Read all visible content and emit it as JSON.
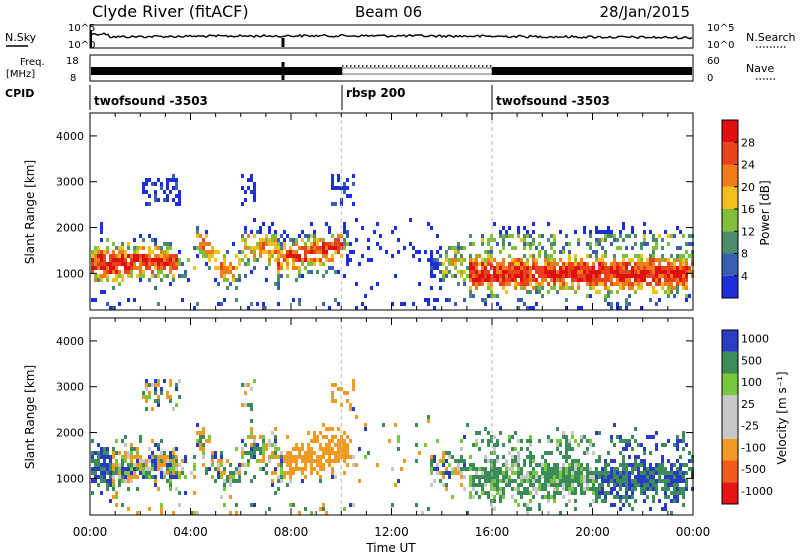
{
  "header": {
    "station": "Clyde River (fitACF)",
    "beam": "Beam 06",
    "date": "28/Jan/2015"
  },
  "noise_panel": {
    "left_label": "N.Sky",
    "right_label": "N.Search",
    "left_ticks": [
      "10^5",
      "10^0"
    ],
    "right_ticks": [
      "10^5",
      "10^0"
    ]
  },
  "freq_panel": {
    "left_label_line1": "Freq.",
    "left_label_line2": "[MHz]",
    "left_ticks": [
      "18",
      "8"
    ],
    "right_ticks": [
      "60",
      "0"
    ],
    "right_label": "Nave"
  },
  "cpid_panel": {
    "label": "CPID",
    "segments": [
      {
        "name": "twofsound -3503",
        "start_hour": 0,
        "end_hour": 10
      },
      {
        "name": "rbsp 200",
        "start_hour": 10,
        "end_hour": 16
      },
      {
        "name": "twofsound -3503",
        "start_hour": 16,
        "end_hour": 24
      }
    ]
  },
  "colors": {
    "power": [
      "#1c2fd8",
      "#3a5fb0",
      "#4a8c6c",
      "#7fbf3a",
      "#f2c01e",
      "#f07c1a",
      "#e8431c",
      "#e01010"
    ],
    "velocity": [
      "#e81414",
      "#f05a1a",
      "#f09a28",
      "#c8c8c8",
      "#c8c8c8",
      "#78c83c",
      "#3c8c5a",
      "#2a3cc0"
    ]
  },
  "chart_data": [
    {
      "type": "heatmap",
      "name": "power",
      "xlabel": "",
      "ylabel": "Slant Range [km]",
      "x_ticks": [
        "00:00",
        "04:00",
        "08:00",
        "12:00",
        "16:00",
        "20:00",
        "00:00"
      ],
      "xlim_hours": [
        0,
        24
      ],
      "ylim": [
        200,
        4500
      ],
      "y_ticks": [
        1000,
        2000,
        3000,
        4000
      ],
      "colorbar_label": "Power [dB]",
      "colorbar_ticks": [
        4,
        8,
        12,
        16,
        20,
        24,
        28
      ],
      "colorbar_range": [
        0,
        32
      ],
      "dashed_lines_hours": [
        10,
        16
      ]
    },
    {
      "type": "heatmap",
      "name": "velocity",
      "xlabel": "Time UT",
      "ylabel": "Slant Range [km]",
      "x_ticks": [
        "00:00",
        "04:00",
        "08:00",
        "12:00",
        "16:00",
        "20:00",
        "00:00"
      ],
      "xlim_hours": [
        0,
        24
      ],
      "ylim": [
        200,
        4500
      ],
      "y_ticks": [
        1000,
        2000,
        3000,
        4000
      ],
      "colorbar_label": "Velocity [m s⁻¹]",
      "colorbar_ticks": [
        "1000",
        "500",
        "100",
        "25",
        "-25",
        "-100",
        "-500",
        "-1000"
      ],
      "dashed_lines_hours": [
        10,
        16
      ]
    }
  ]
}
